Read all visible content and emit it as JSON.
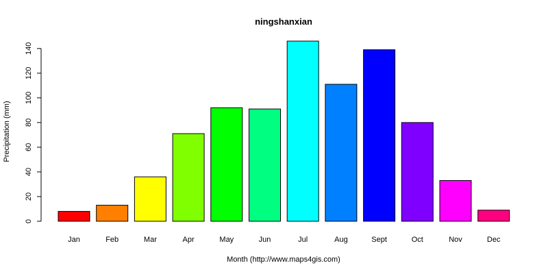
{
  "chart_data": {
    "type": "bar",
    "title": "ningshanxian",
    "xlabel": "Month (http://www.maps4gis.com)",
    "ylabel": "Precipitation (mm)",
    "categories": [
      "Jan",
      "Feb",
      "Mar",
      "Apr",
      "May",
      "Jun",
      "Jul",
      "Aug",
      "Sept",
      "Oct",
      "Nov",
      "Dec"
    ],
    "values": [
      8,
      13,
      36,
      71,
      92,
      91,
      146,
      111,
      139,
      80,
      33,
      9
    ],
    "colors": [
      "#FF0000",
      "#FF8000",
      "#FFFF00",
      "#80FF00",
      "#00FF00",
      "#00FF80",
      "#00FFFF",
      "#0080FF",
      "#0000FF",
      "#8000FF",
      "#FF00FF",
      "#FF0080"
    ],
    "yticks": [
      0,
      20,
      40,
      60,
      80,
      100,
      120,
      140
    ],
    "ylim": [
      0,
      146
    ],
    "grid": false,
    "legend": "none"
  }
}
